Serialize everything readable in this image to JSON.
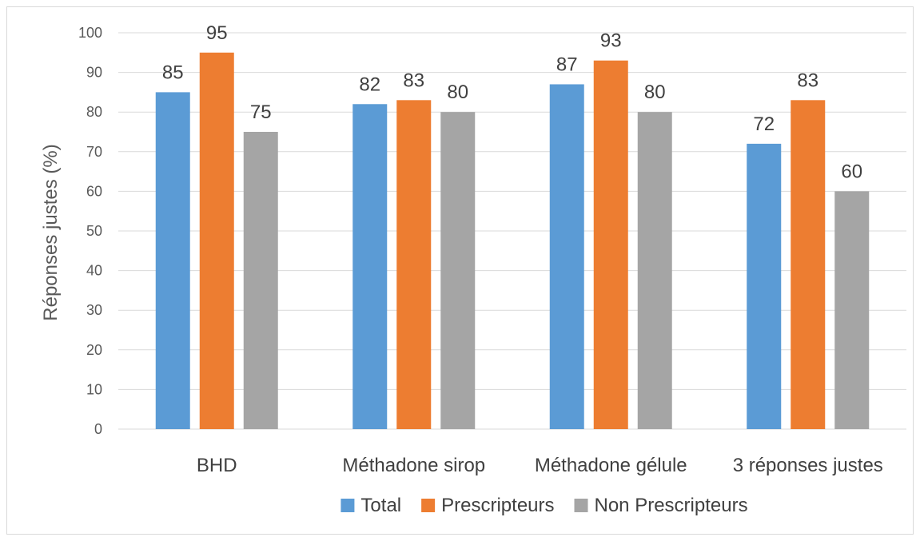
{
  "chart_data": {
    "type": "bar",
    "title": "",
    "xlabel": "",
    "ylabel": "Réponses justes (%)",
    "ylim": [
      0,
      100
    ],
    "ytick_step": 10,
    "grid": true,
    "legend_position": "bottom",
    "categories": [
      "BHD",
      "Méthadone sirop",
      "Méthadone gélule",
      "3 réponses justes"
    ],
    "series": [
      {
        "name": "Total",
        "color": "#5b9bd5",
        "values": [
          85,
          82,
          87,
          72
        ]
      },
      {
        "name": "Prescripteurs",
        "color": "#ed7d31",
        "values": [
          95,
          83,
          93,
          83
        ]
      },
      {
        "name": "Non Prescripteurs",
        "color": "#a5a5a5",
        "values": [
          75,
          80,
          80,
          60
        ]
      }
    ]
  }
}
